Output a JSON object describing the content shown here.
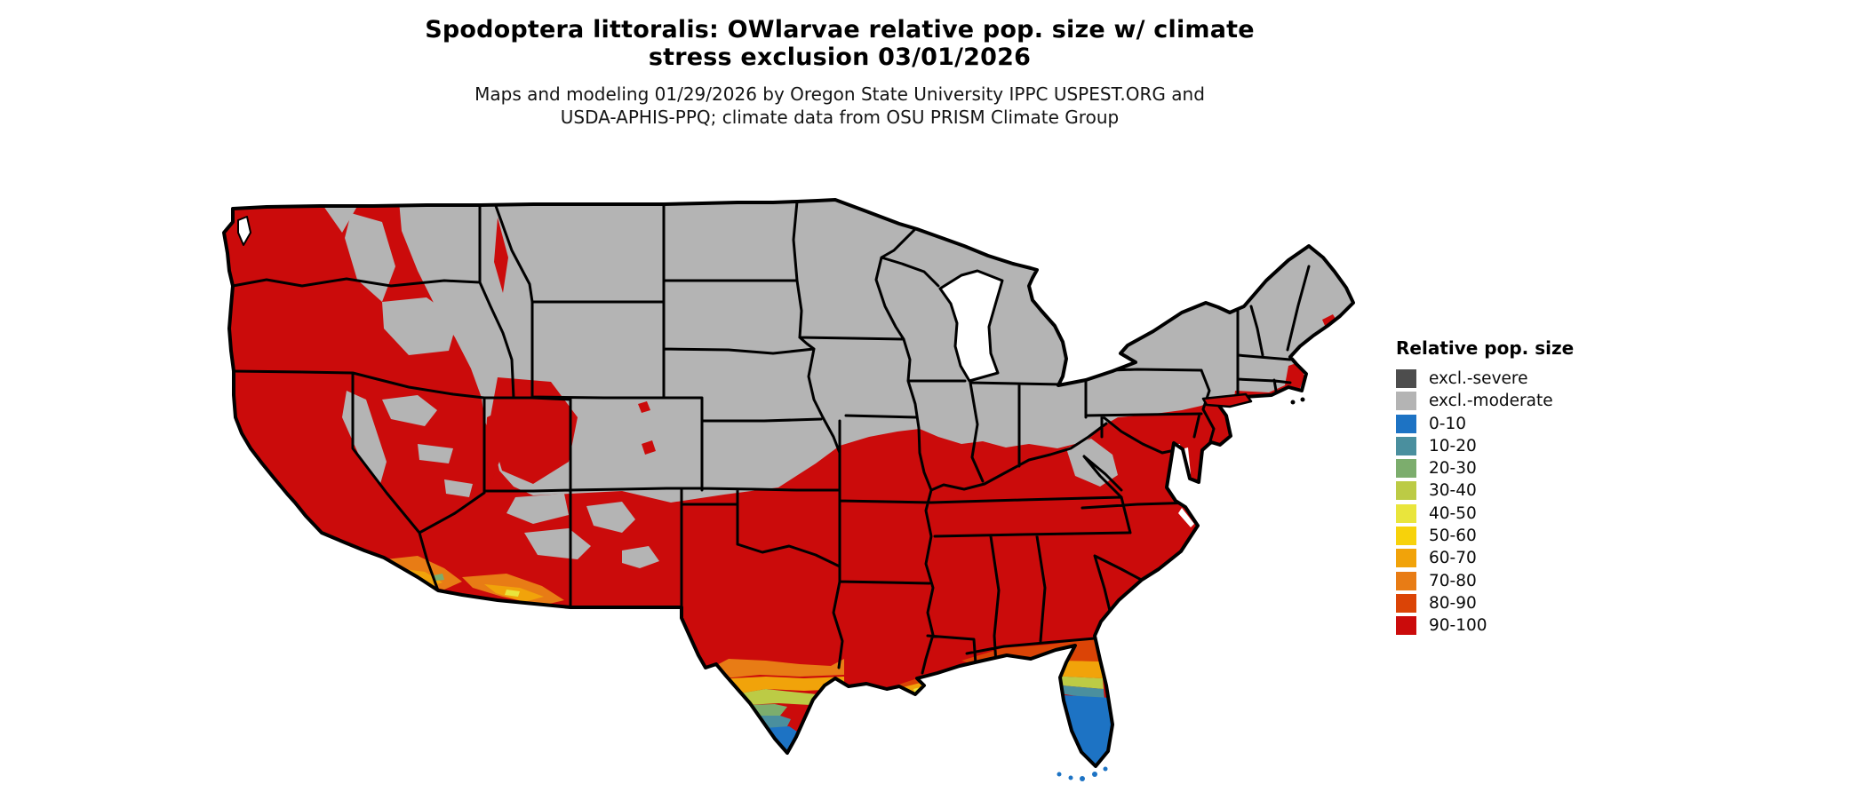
{
  "title": {
    "line1": "Spodoptera littoralis: OWlarvae relative pop. size w/ climate",
    "line2": "stress exclusion 03/01/2026"
  },
  "subtitle": {
    "line1": "Maps and modeling 01/29/2026 by Oregon State University IPPC USPEST.ORG and",
    "line2": "USDA-APHIS-PPQ; climate data from OSU PRISM Climate Group"
  },
  "legend": {
    "title": "Relative pop. size",
    "items": [
      {
        "id": "excl-severe",
        "label": "excl.-severe",
        "color_key": "excl_severe"
      },
      {
        "id": "excl-moderate",
        "label": "excl.-moderate",
        "color_key": "excl_moderate"
      },
      {
        "id": "p0-10",
        "label": "0-10",
        "color_key": "p0_10"
      },
      {
        "id": "p10-20",
        "label": "10-20",
        "color_key": "p10_20"
      },
      {
        "id": "p20-30",
        "label": "20-30",
        "color_key": "p20_30"
      },
      {
        "id": "p30-40",
        "label": "30-40",
        "color_key": "p30_40"
      },
      {
        "id": "p40-50",
        "label": "40-50",
        "color_key": "p40_50"
      },
      {
        "id": "p50-60",
        "label": "50-60",
        "color_key": "p50_60"
      },
      {
        "id": "p60-70",
        "label": "60-70",
        "color_key": "p60_70"
      },
      {
        "id": "p70-80",
        "label": "70-80",
        "color_key": "p70_80"
      },
      {
        "id": "p80-90",
        "label": "80-90",
        "color_key": "p80_90"
      },
      {
        "id": "p90-100",
        "label": "90-100",
        "color_key": "p90_100"
      }
    ]
  },
  "colors": {
    "excl_severe": "#4D4D4D",
    "excl_moderate": "#B4B4B4",
    "p0_10": "#1D73C4",
    "p10_20": "#4A8F9E",
    "p20_30": "#7CAD6D",
    "p30_40": "#BCCB45",
    "p40_50": "#E9E53C",
    "p50_60": "#F7D20B",
    "p60_70": "#F1A30A",
    "p70_80": "#E87C15",
    "p80_90": "#DB4406",
    "p90_100": "#CB0B0B",
    "outline": "#000000",
    "water": "#FFFFFF"
  }
}
